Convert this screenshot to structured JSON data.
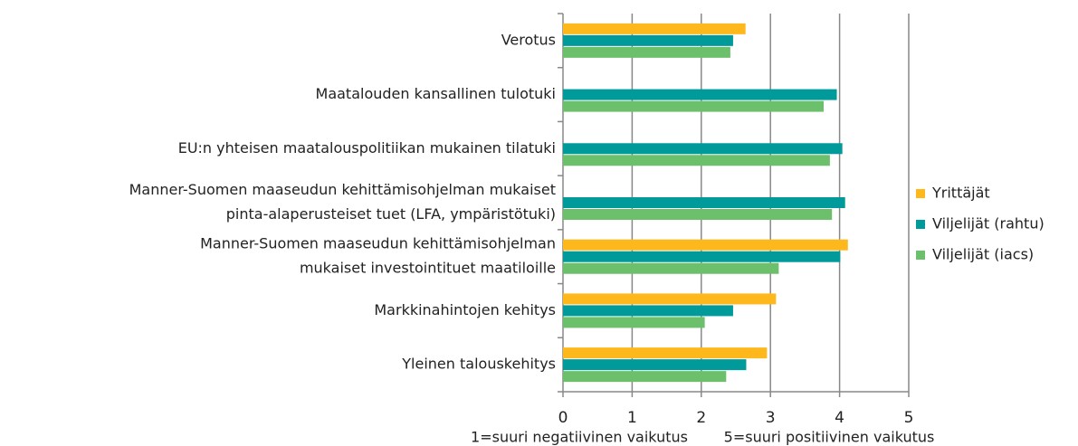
{
  "chart_data": {
    "type": "hbar",
    "categories": [
      [
        "Verotus"
      ],
      [
        "Maatalouden  kansallinen tulotuki"
      ],
      [
        "EU:n yhteisen maatalouspolitiikan mukainen tilatuki"
      ],
      [
        "Manner-Suomen maaseudun kehittämisohjelman  mukaiset",
        "pinta-alaperusteiset tuet (LFA, ympäristötuki)"
      ],
      [
        "Manner-Suomen maaseudun kehittämisohjelman",
        "mukaiset investointituet maatiloille"
      ],
      [
        "Markkinahintojen kehitys"
      ],
      [
        "Yleinen talouskehitys"
      ]
    ],
    "series": [
      {
        "name": "Yrittäjät",
        "color": "#ffb81c",
        "values": [
          2.64,
          null,
          null,
          null,
          4.12,
          3.08,
          2.95
        ]
      },
      {
        "name": "Viljelijät (rahtu)",
        "color": "#009a9a",
        "values": [
          2.46,
          3.96,
          4.04,
          4.08,
          4.01,
          2.46,
          2.65
        ]
      },
      {
        "name": "Viljelijät (iacs)",
        "color": "#6cc06c",
        "values": [
          2.42,
          3.77,
          3.86,
          3.89,
          3.12,
          2.05,
          2.36
        ]
      }
    ],
    "xlim": [
      0,
      5
    ],
    "xticks": [
      0,
      1,
      2,
      3,
      4,
      5
    ],
    "grid": true,
    "legend": "right",
    "xlabel": [
      "1=suuri negatiivinen vaikutus",
      "5=suuri positiivinen vaikutus"
    ]
  }
}
